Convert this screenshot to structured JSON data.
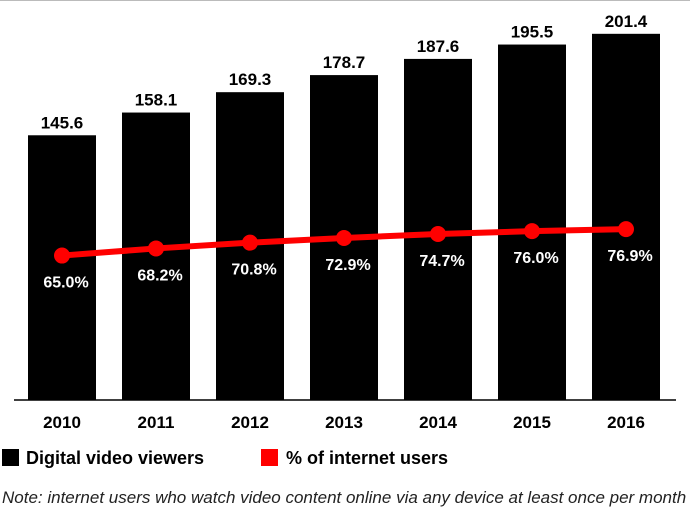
{
  "chart_data": {
    "type": "bar",
    "categories": [
      "2010",
      "2011",
      "2012",
      "2013",
      "2014",
      "2015",
      "2016"
    ],
    "series": [
      {
        "name": "Digital video viewers",
        "type": "bar",
        "values": [
          145.6,
          158.1,
          169.3,
          178.7,
          187.6,
          195.5,
          201.4
        ],
        "labels": [
          "145.6",
          "158.1",
          "169.3",
          "178.7",
          "187.6",
          "195.5",
          "201.4"
        ],
        "color": "#000000"
      },
      {
        "name": "% of internet users",
        "type": "line",
        "values": [
          65.0,
          68.2,
          70.8,
          72.9,
          74.7,
          76.0,
          76.9
        ],
        "labels": [
          "65.0%",
          "68.2%",
          "70.8%",
          "72.9%",
          "74.7%",
          "76.0%",
          "76.9%"
        ],
        "color": "#ff0000"
      }
    ],
    "ylim": [
      0,
      220
    ],
    "y2lim": [
      0,
      180
    ],
    "grid": false,
    "legend": "bottom-left",
    "note": "Note: internet users who watch video content online via any device at least once per month"
  }
}
